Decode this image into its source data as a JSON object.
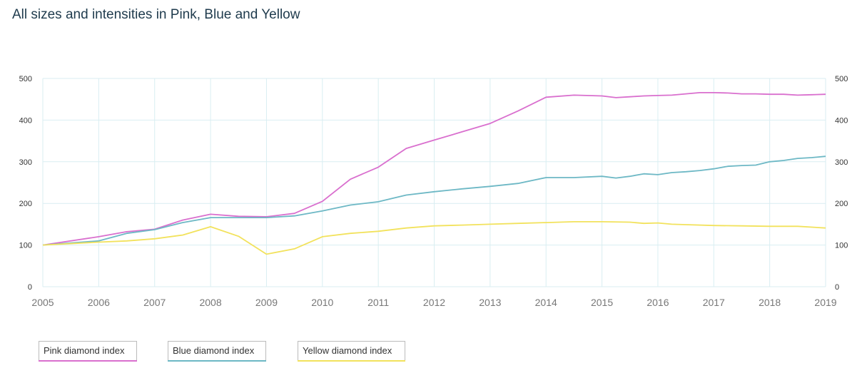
{
  "title": "All sizes and intensities in Pink, Blue and Yellow",
  "colors": {
    "pink": "#d96fce",
    "blue": "#6db8c5",
    "yellow": "#f2e25c",
    "grid": "#d9eef2"
  },
  "chart_data": {
    "type": "line",
    "title": "All sizes and intensities in Pink, Blue and Yellow",
    "xlabel": "",
    "ylabel": "",
    "xlim": [
      2005,
      2019
    ],
    "ylim": [
      0,
      500
    ],
    "x_ticks": [
      "2005",
      "2006",
      "2007",
      "2008",
      "2009",
      "2010",
      "2011",
      "2012",
      "2013",
      "2014",
      "2015",
      "2016",
      "2017",
      "2018",
      "2019"
    ],
    "y_ticks": [
      "0",
      "100",
      "200",
      "300",
      "400",
      "500"
    ],
    "grid": true,
    "dual_y_axis": true,
    "legend_position": "bottom-left",
    "series": [
      {
        "name": "Pink diamond index",
        "color": "#d96fce",
        "x": [
          2005,
          2006,
          2006.5,
          2007,
          2007.5,
          2008,
          2008.5,
          2009,
          2009.5,
          2010,
          2010.5,
          2011,
          2011.5,
          2012,
          2012.5,
          2013,
          2013.5,
          2014,
          2014.5,
          2015,
          2015.25,
          2015.5,
          2015.75,
          2016,
          2016.25,
          2016.5,
          2016.75,
          2017,
          2017.25,
          2017.5,
          2017.75,
          2018,
          2018.25,
          2018.5,
          2018.75,
          2019
        ],
        "y": [
          100,
          120,
          132,
          138,
          160,
          174,
          169,
          168,
          176,
          205,
          258,
          287,
          332,
          352,
          372,
          392,
          422,
          455,
          460,
          458,
          454,
          456,
          458,
          459,
          460,
          463,
          466,
          466,
          465,
          463,
          463,
          462,
          462,
          460,
          461,
          462
        ]
      },
      {
        "name": "Blue diamond index",
        "color": "#6db8c5",
        "x": [
          2005,
          2006,
          2006.5,
          2007,
          2007.5,
          2008,
          2008.5,
          2009,
          2009.5,
          2010,
          2010.5,
          2011,
          2011.5,
          2012,
          2012.5,
          2013,
          2013.5,
          2014,
          2014.5,
          2015,
          2015.25,
          2015.5,
          2015.75,
          2016,
          2016.25,
          2016.5,
          2016.75,
          2017,
          2017.25,
          2017.5,
          2017.75,
          2018,
          2018.25,
          2018.5,
          2018.75,
          2019
        ],
        "y": [
          100,
          110,
          128,
          137,
          154,
          166,
          166,
          166,
          170,
          182,
          196,
          204,
          220,
          228,
          235,
          241,
          248,
          262,
          262,
          265,
          261,
          265,
          271,
          269,
          274,
          276,
          279,
          283,
          289,
          291,
          292,
          300,
          303,
          308,
          310,
          313
        ]
      },
      {
        "name": "Yellow diamond index",
        "color": "#f2e25c",
        "x": [
          2005,
          2006,
          2006.5,
          2007,
          2007.5,
          2008,
          2008.5,
          2009,
          2009.5,
          2010,
          2010.5,
          2011,
          2011.5,
          2012,
          2012.5,
          2013,
          2013.5,
          2014,
          2014.5,
          2015,
          2015.5,
          2015.75,
          2016,
          2016.25,
          2016.5,
          2017,
          2017.5,
          2018,
          2018.5,
          2019
        ],
        "y": [
          100,
          107,
          110,
          115,
          124,
          144,
          121,
          78,
          91,
          120,
          128,
          133,
          141,
          146,
          148,
          150,
          152,
          154,
          156,
          156,
          155,
          152,
          153,
          150,
          149,
          147,
          146,
          145,
          145,
          141
        ]
      }
    ]
  }
}
